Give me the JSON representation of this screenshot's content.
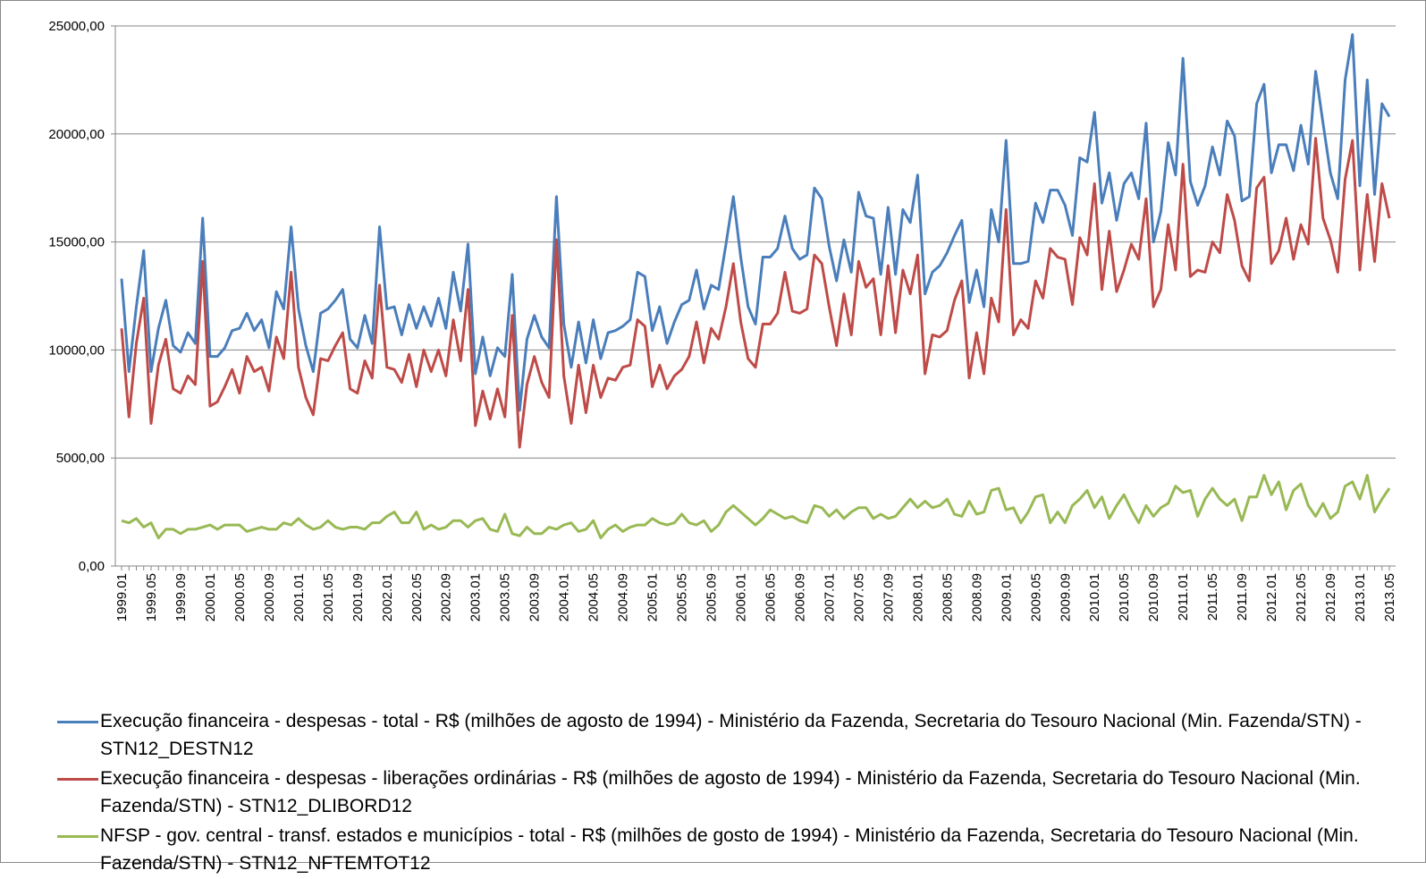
{
  "chart_data": {
    "type": "line",
    "categories": [
      "1999.01",
      null,
      null,
      null,
      "1999.05",
      null,
      null,
      null,
      "1999.09",
      null,
      null,
      null,
      "2000.01",
      null,
      null,
      null,
      "2000.05",
      null,
      null,
      null,
      "2000.09",
      null,
      null,
      null,
      "2001.01",
      null,
      null,
      null,
      "2001.05",
      null,
      null,
      null,
      "2001.09",
      null,
      null,
      null,
      "2002.01",
      null,
      null,
      null,
      "2002.05",
      null,
      null,
      null,
      "2002.09",
      null,
      null,
      null,
      "2003.01",
      null,
      null,
      null,
      "2003.05",
      null,
      null,
      null,
      "2003.09",
      null,
      null,
      null,
      "2004.01",
      null,
      null,
      null,
      "2004.05",
      null,
      null,
      null,
      "2004.09",
      null,
      null,
      null,
      "2005.01",
      null,
      null,
      null,
      "2005.05",
      null,
      null,
      null,
      "2005.09",
      null,
      null,
      null,
      "2006.01",
      null,
      null,
      null,
      "2006.05",
      null,
      null,
      null,
      "2006.09",
      null,
      null,
      null,
      "2007.01",
      null,
      null,
      null,
      "2007.05",
      null,
      null,
      null,
      "2007.09",
      null,
      null,
      null,
      "2008.01",
      null,
      null,
      null,
      "2008.05",
      null,
      null,
      null,
      "2008.09",
      null,
      null,
      null,
      "2009.01",
      null,
      null,
      null,
      "2009.05",
      null,
      null,
      null,
      "2009.09",
      null,
      null,
      null,
      "2010.01",
      null,
      null,
      null,
      "2010.05",
      null,
      null,
      null,
      "2010.09",
      null,
      null,
      null,
      "2011.01",
      null,
      null,
      null,
      "2011.05",
      null,
      null,
      null,
      "2011.09",
      null,
      null,
      null,
      "2012.01",
      null,
      null,
      null,
      "2012.05",
      null,
      null,
      null,
      "2012.09",
      null,
      null,
      null,
      "2013.01",
      null,
      null,
      null,
      "2013.05"
    ],
    "series": [
      {
        "name": "Execução financeira - despesas - total - R$ (milhões de agosto de 1994)  - Ministério da Fazenda, Secretaria do Tesouro Nacional (Min. Fazenda/STN) - STN12_DESTN12",
        "color": "#4a7ebb",
        "values": [
          13300,
          9000,
          12000,
          14600,
          9000,
          11000,
          12300,
          10200,
          9900,
          10800,
          10300,
          16100,
          9700,
          9700,
          10100,
          10900,
          11000,
          11700,
          10900,
          11400,
          10100,
          12700,
          11900,
          15700,
          11900,
          10200,
          9000,
          11700,
          11900,
          12300,
          12800,
          10500,
          10100,
          11600,
          10300,
          15700,
          11900,
          12000,
          10700,
          12100,
          11000,
          12000,
          11100,
          12400,
          11000,
          13600,
          11800,
          14900,
          8900,
          10600,
          8800,
          10100,
          9700,
          13500,
          7200,
          10500,
          11600,
          10600,
          10100,
          17100,
          11200,
          9200,
          11300,
          9400,
          11400,
          9600,
          10800,
          10900,
          11100,
          11400,
          13600,
          13400,
          10900,
          12000,
          10300,
          11300,
          12100,
          12300,
          13700,
          11900,
          13000,
          12800,
          14900,
          17100,
          14300,
          12000,
          11200,
          14300,
          14300,
          14700,
          16200,
          14700,
          14200,
          14400,
          17500,
          17000,
          14800,
          13200,
          15100,
          13600,
          17300,
          16200,
          16100,
          13500,
          16600,
          13500,
          16500,
          15900,
          18100,
          12600,
          13600,
          13900,
          14500,
          15300,
          16000,
          12200,
          13700,
          12000,
          16500,
          15000,
          19700,
          14000,
          14000,
          14100,
          16800,
          15900,
          17400,
          17400,
          16700,
          15300,
          18900,
          18700,
          21000,
          16800,
          18200,
          16000,
          17700,
          18200,
          17000,
          20500,
          15000,
          16400,
          19600,
          18100,
          23500,
          17800,
          16700,
          17600,
          19400,
          18100,
          20600,
          19900,
          16900,
          17100,
          21400,
          22300,
          18200,
          19500,
          19500,
          18300,
          20400,
          18600,
          22900,
          20500,
          18200,
          17000,
          22500,
          24600,
          17600,
          22500,
          17200,
          21400,
          20800
        ]
      },
      {
        "name": "Execução financeira - despesas - liberações ordinárias - R$ (milhões de agosto de 1994)  - Ministério da Fazenda, Secretaria do Tesouro Nacional (Min. Fazenda/STN) - STN12_DLIBORD12",
        "color": "#be4b48",
        "values": [
          11000,
          6900,
          10300,
          12400,
          6600,
          9300,
          10500,
          8200,
          8000,
          8800,
          8400,
          14100,
          7400,
          7600,
          8300,
          9100,
          8000,
          9700,
          9000,
          9200,
          8100,
          10600,
          9600,
          13600,
          9200,
          7800,
          7000,
          9600,
          9500,
          10200,
          10800,
          8200,
          8000,
          9500,
          8700,
          13000,
          9200,
          9100,
          8500,
          9800,
          8300,
          10000,
          9000,
          10000,
          8800,
          11400,
          9500,
          12800,
          6500,
          8100,
          6800,
          8200,
          6900,
          11600,
          5500,
          8400,
          9700,
          8500,
          7800,
          15100,
          8800,
          6600,
          9300,
          7100,
          9300,
          7800,
          8700,
          8600,
          9200,
          9300,
          11400,
          11100,
          8300,
          9300,
          8200,
          8800,
          9100,
          9700,
          11300,
          9400,
          11000,
          10500,
          12000,
          14000,
          11300,
          9600,
          9200,
          11200,
          11200,
          11700,
          13600,
          11800,
          11700,
          11900,
          14400,
          14000,
          12000,
          10200,
          12600,
          10700,
          14100,
          12900,
          13300,
          10700,
          13900,
          10800,
          13700,
          12600,
          14400,
          8900,
          10700,
          10600,
          10900,
          12300,
          13200,
          8700,
          10800,
          8900,
          12400,
          11300,
          16500,
          10700,
          11400,
          11000,
          13200,
          12400,
          14700,
          14300,
          14200,
          12100,
          15200,
          14400,
          17700,
          12800,
          15500,
          12700,
          13700,
          14900,
          14200,
          17000,
          12000,
          12800,
          15800,
          13700,
          18600,
          13400,
          13700,
          13600,
          15000,
          14500,
          17200,
          16000,
          13900,
          13200,
          17500,
          18000,
          14000,
          14600,
          16100,
          14200,
          15800,
          14900,
          19800,
          16100,
          15100,
          13600,
          17900,
          19700,
          13700,
          17200,
          14100,
          17700,
          16100
        ]
      },
      {
        "name": "NFSP - gov. central - transf. estados e municípios - total - R$ (milhões de gosto de 1994)  - Ministério da Fazenda, Secretaria do Tesouro Nacional (Min. Fazenda/STN) - STN12_NFTEMTOT12",
        "color": "#98b954",
        "values": [
          2100,
          2000,
          2200,
          1800,
          2000,
          1300,
          1700,
          1700,
          1500,
          1700,
          1700,
          1800,
          1900,
          1700,
          1900,
          1900,
          1900,
          1600,
          1700,
          1800,
          1700,
          1700,
          2000,
          1900,
          2200,
          1900,
          1700,
          1800,
          2100,
          1800,
          1700,
          1800,
          1800,
          1700,
          2000,
          2000,
          2300,
          2500,
          2000,
          2000,
          2500,
          1700,
          1900,
          1700,
          1800,
          2100,
          2100,
          1800,
          2100,
          2200,
          1700,
          1600,
          2400,
          1500,
          1400,
          1800,
          1500,
          1500,
          1800,
          1700,
          1900,
          2000,
          1600,
          1700,
          2100,
          1300,
          1700,
          1900,
          1600,
          1800,
          1900,
          1900,
          2200,
          2000,
          1900,
          2000,
          2400,
          2000,
          1900,
          2100,
          1600,
          1900,
          2500,
          2800,
          2500,
          2200,
          1900,
          2200,
          2600,
          2400,
          2200,
          2300,
          2100,
          2000,
          2800,
          2700,
          2300,
          2600,
          2200,
          2500,
          2700,
          2700,
          2200,
          2400,
          2200,
          2300,
          2700,
          3100,
          2700,
          3000,
          2700,
          2800,
          3100,
          2400,
          2300,
          3000,
          2400,
          2500,
          3500,
          3600,
          2600,
          2700,
          2000,
          2500,
          3200,
          3300,
          2000,
          2500,
          2000,
          2800,
          3100,
          3500,
          2700,
          3200,
          2200,
          2800,
          3300,
          2600,
          2000,
          2800,
          2300,
          2700,
          2900,
          3700,
          3400,
          3500,
          2300,
          3100,
          3600,
          3100,
          2800,
          3100,
          2100,
          3200,
          3200,
          4200,
          3300,
          3900,
          2600,
          3500,
          3800,
          2800,
          2300,
          2900,
          2200,
          2500,
          3700,
          3900,
          3100,
          4200,
          2500,
          3100,
          3600
        ]
      }
    ],
    "ylim": [
      0,
      25000
    ],
    "yticks": [
      {
        "value": 0,
        "label": "0,00"
      },
      {
        "value": 5000,
        "label": "5000,00"
      },
      {
        "value": 10000,
        "label": "10000,00"
      },
      {
        "value": 15000,
        "label": "15000,00"
      },
      {
        "value": 20000,
        "label": "20000,00"
      },
      {
        "value": 25000,
        "label": "25000,00"
      }
    ],
    "grid": true
  }
}
